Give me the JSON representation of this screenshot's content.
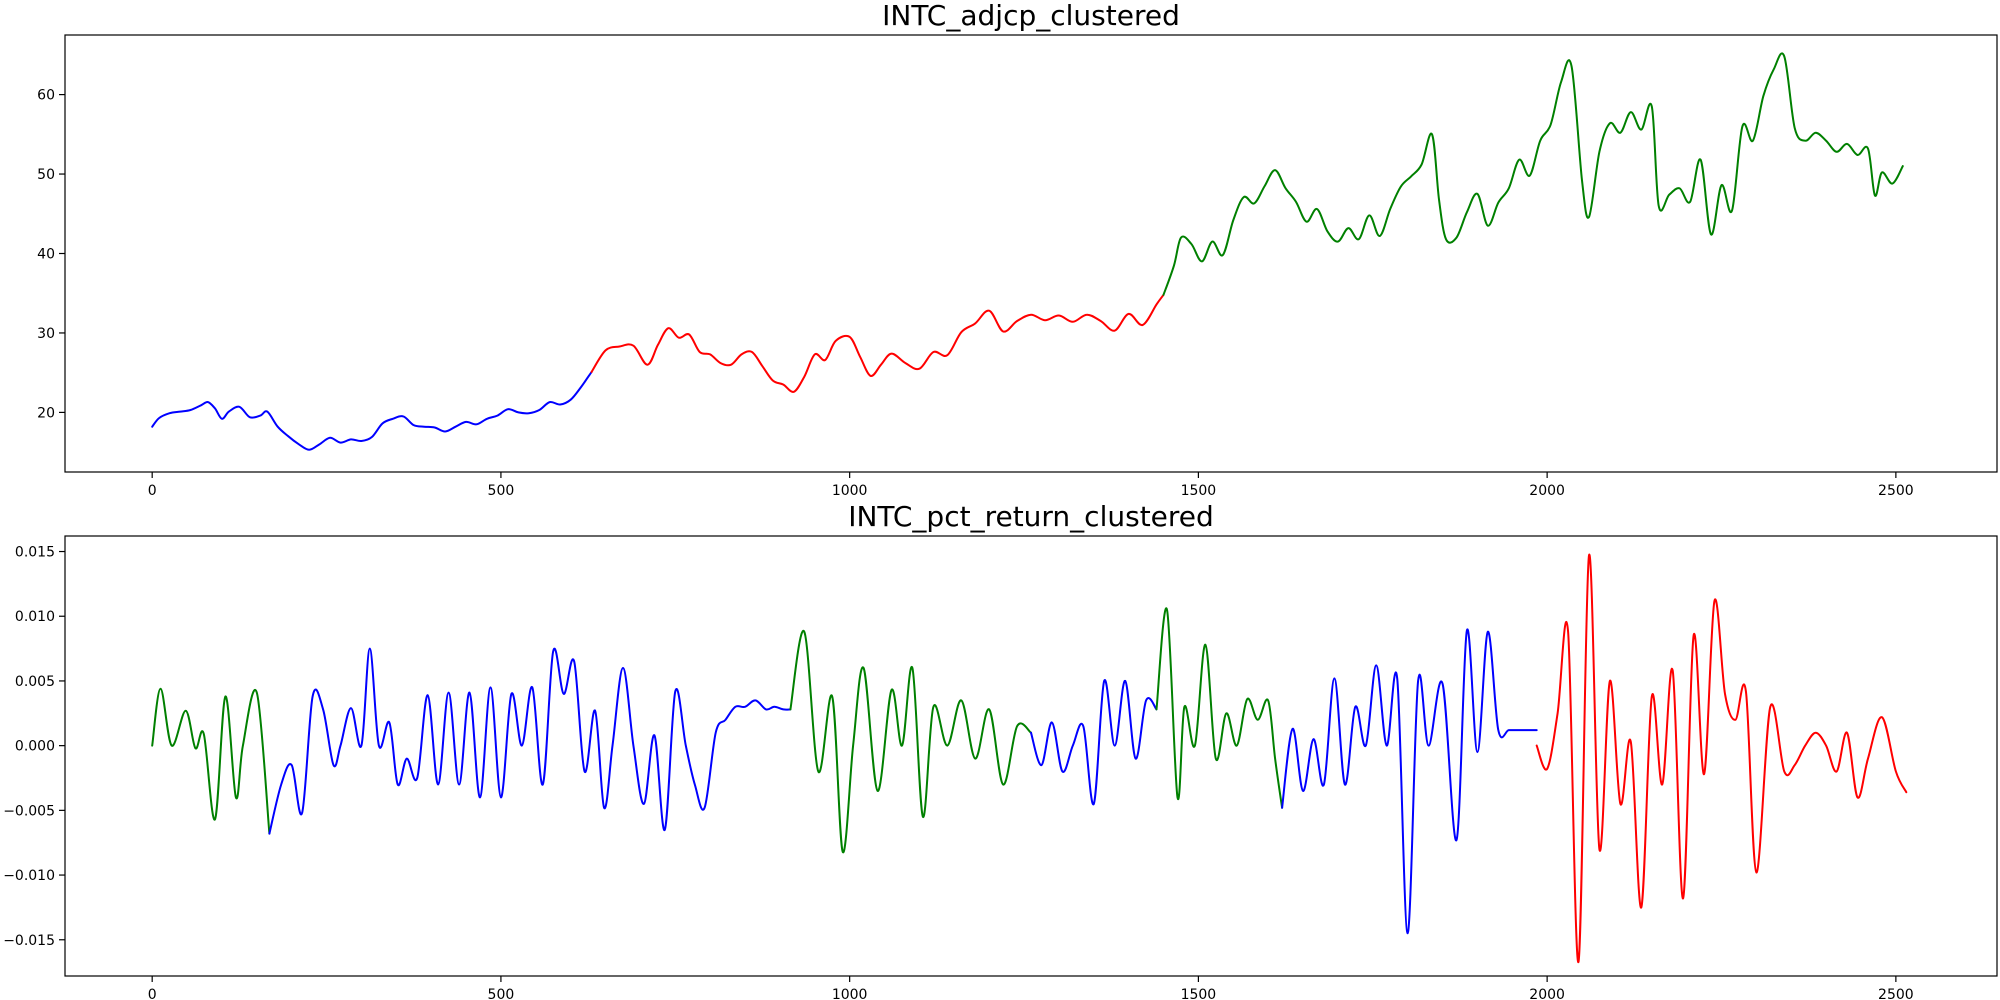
{
  "chart_data": [
    {
      "type": "line",
      "title": "INTC_adjcp_clustered",
      "xlabel": "",
      "ylabel": "",
      "xlim": [
        -125,
        2645
      ],
      "ylim": [
        12.5,
        67.5
      ],
      "xticks": [
        0,
        500,
        1000,
        1500,
        2000,
        2500
      ],
      "yticks": [
        20,
        30,
        40,
        50,
        60
      ],
      "x_tick_labels": [
        "0",
        "500",
        "1000",
        "1500",
        "2000",
        "2500"
      ],
      "y_tick_labels": [
        "20",
        "30",
        "40",
        "50",
        "60"
      ],
      "grid": false,
      "legend": "none",
      "colors": {
        "blue": "#0000ff",
        "red": "#ff0000",
        "green": "#008000"
      },
      "series": [
        {
          "color": "#0000ff",
          "x": [
            0,
            10,
            25,
            40,
            55,
            70,
            80,
            90,
            100,
            110,
            125,
            140,
            155,
            165,
            180,
            195,
            210,
            225,
            240,
            255,
            270,
            285,
            300,
            315,
            330,
            345,
            360,
            375,
            390,
            405,
            420,
            435,
            450,
            465,
            480,
            495,
            510,
            525,
            540,
            555,
            570,
            585,
            600,
            615,
            630
          ],
          "y": [
            18.2,
            19.3,
            19.9,
            20.1,
            20.3,
            20.9,
            21.3,
            20.5,
            19.2,
            20.1,
            20.7,
            19.4,
            19.6,
            20.1,
            18.2,
            17.0,
            16.0,
            15.3,
            16.0,
            16.8,
            16.2,
            16.6,
            16.4,
            16.9,
            18.6,
            19.2,
            19.5,
            18.4,
            18.2,
            18.1,
            17.6,
            18.2,
            18.8,
            18.5,
            19.2,
            19.6,
            20.4,
            20.0,
            19.9,
            20.3,
            21.3,
            21.0,
            21.6,
            23.2,
            25.1
          ]
        },
        {
          "color": "#ff0000",
          "x": [
            630,
            650,
            670,
            690,
            710,
            725,
            740,
            755,
            770,
            785,
            800,
            815,
            830,
            845,
            860,
            875,
            890,
            905,
            920,
            935,
            950,
            965,
            980,
            1000,
            1015,
            1030,
            1045,
            1060,
            1080,
            1100,
            1120,
            1140,
            1160,
            1180,
            1200,
            1220,
            1240,
            1260,
            1280,
            1300,
            1320,
            1340,
            1360,
            1380,
            1400,
            1420,
            1440,
            1450
          ],
          "y": [
            25.1,
            27.8,
            28.3,
            28.4,
            26.0,
            28.5,
            30.6,
            29.4,
            29.8,
            27.6,
            27.3,
            26.2,
            26.0,
            27.3,
            27.6,
            25.8,
            24.0,
            23.5,
            22.6,
            24.5,
            27.3,
            26.6,
            29.0,
            29.5,
            27.0,
            24.6,
            26.0,
            27.4,
            26.2,
            25.5,
            27.6,
            27.2,
            30.1,
            31.2,
            32.8,
            30.2,
            31.5,
            32.3,
            31.6,
            32.2,
            31.4,
            32.3,
            31.5,
            30.3,
            32.4,
            31.0,
            33.6,
            34.8
          ]
        },
        {
          "color": "#008000",
          "x": [
            1450,
            1465,
            1475,
            1490,
            1505,
            1520,
            1535,
            1550,
            1565,
            1580,
            1595,
            1610,
            1625,
            1640,
            1655,
            1670,
            1685,
            1700,
            1715,
            1730,
            1745,
            1760,
            1775,
            1790,
            1805,
            1820,
            1835,
            1845,
            1855,
            1870,
            1885,
            1900,
            1915,
            1930,
            1945,
            1960,
            1975,
            1990,
            2005,
            2020,
            2035,
            2050,
            2060,
            2075,
            2090,
            2105,
            2120,
            2135,
            2150,
            2160,
            2175,
            2190,
            2205,
            2220,
            2235,
            2250,
            2265,
            2280,
            2295,
            2310,
            2325,
            2340,
            2355,
            2370,
            2385,
            2400,
            2415,
            2430,
            2445,
            2460,
            2470,
            2480,
            2495,
            2510
          ],
          "y": [
            34.8,
            38.5,
            42.0,
            41.2,
            39.0,
            41.5,
            39.8,
            44.2,
            47.1,
            46.3,
            48.5,
            50.5,
            48.2,
            46.5,
            44.0,
            45.6,
            42.8,
            41.5,
            43.2,
            41.8,
            44.8,
            42.2,
            45.6,
            48.4,
            49.7,
            51.2,
            55.0,
            46.8,
            41.8,
            42.0,
            45.2,
            47.5,
            43.5,
            46.4,
            48.2,
            51.8,
            49.8,
            54.2,
            56.2,
            61.6,
            63.6,
            49.2,
            44.6,
            52.8,
            56.4,
            55.2,
            57.8,
            55.6,
            58.5,
            46.0,
            47.4,
            48.2,
            46.5,
            51.8,
            42.4,
            48.6,
            45.4,
            56.0,
            54.2,
            59.8,
            63.2,
            64.8,
            55.8,
            54.2,
            55.2,
            54.2,
            52.8,
            53.8,
            52.4,
            53.2,
            47.3,
            50.2,
            48.8,
            51.0
          ]
        }
      ]
    },
    {
      "type": "line",
      "title": "INTC_pct_return_clustered",
      "xlabel": "",
      "ylabel": "",
      "xlim": [
        -125,
        2645
      ],
      "ylim": [
        -0.0178,
        0.0162
      ],
      "xticks": [
        0,
        500,
        1000,
        1500,
        2000,
        2500
      ],
      "yticks": [
        -0.015,
        -0.01,
        -0.005,
        0.0,
        0.005,
        0.01,
        0.015
      ],
      "x_tick_labels": [
        "0",
        "500",
        "1000",
        "1500",
        "2000",
        "2500"
      ],
      "y_tick_labels": [
        "−0.015",
        "−0.010",
        "−0.005",
        "0.000",
        "0.005",
        "0.010",
        "0.015"
      ],
      "grid": false,
      "legend": "none",
      "colors": {
        "blue": "#0000ff",
        "red": "#ff0000",
        "green": "#008000"
      },
      "series": [
        {
          "color": "#008000",
          "x": [
            0,
            12,
            28,
            48,
            62,
            74,
            90,
            105,
            120,
            130,
            150,
            168
          ],
          "y": [
            0.0,
            0.0044,
            0.0,
            0.0027,
            -0.0002,
            0.0009,
            -0.0057,
            0.0038,
            -0.004,
            0.0,
            0.0041,
            -0.0068
          ]
        },
        {
          "color": "#0000ff",
          "x": [
            168,
            185,
            200,
            215,
            230,
            245,
            260,
            270,
            285,
            300,
            312,
            325,
            340,
            352,
            365,
            380,
            395,
            410,
            425,
            440,
            455,
            470,
            485,
            500,
            515,
            530,
            545,
            560,
            575,
            590,
            605,
            620,
            635,
            648,
            660,
            675,
            690,
            705,
            720,
            735,
            750,
            765,
            778,
            792,
            808,
            822,
            836,
            850,
            865,
            880,
            892,
            905,
            915
          ],
          "y": [
            -0.0068,
            -0.003,
            -0.0015,
            -0.0052,
            0.0038,
            0.0028,
            -0.0015,
            0.0,
            0.0029,
            0.0,
            0.0075,
            0.0,
            0.0018,
            -0.003,
            -0.001,
            -0.0025,
            0.0039,
            -0.003,
            0.0041,
            -0.003,
            0.0041,
            -0.004,
            0.0045,
            -0.004,
            0.004,
            0.0,
            0.0045,
            -0.003,
            0.0073,
            0.004,
            0.0065,
            -0.002,
            0.0027,
            -0.0048,
            0.0,
            0.006,
            0.0,
            -0.0045,
            0.0008,
            -0.0065,
            0.0042,
            0.0,
            -0.003,
            -0.0048,
            0.001,
            0.002,
            0.003,
            0.003,
            0.0035,
            0.0028,
            0.003,
            0.0028,
            0.0028
          ]
        },
        {
          "color": "#008000",
          "x": [
            915,
            935,
            955,
            975,
            990,
            1005,
            1020,
            1040,
            1060,
            1075,
            1090,
            1105,
            1120,
            1140,
            1160,
            1180,
            1200,
            1220,
            1240,
            1260
          ],
          "y": [
            0.0028,
            0.0088,
            -0.002,
            0.0038,
            -0.0082,
            0.0,
            0.006,
            -0.0035,
            0.0043,
            0.0,
            0.006,
            -0.0055,
            0.003,
            0.0,
            0.0035,
            -0.001,
            0.0028,
            -0.003,
            0.0015,
            0.001
          ]
        },
        {
          "color": "#0000ff",
          "x": [
            1260,
            1275,
            1290,
            1305,
            1320,
            1335,
            1350,
            1365,
            1380,
            1395,
            1410,
            1425,
            1440
          ],
          "y": [
            0.001,
            -0.0015,
            0.0018,
            -0.002,
            0.0,
            0.0015,
            -0.0045,
            0.005,
            0.0,
            0.005,
            -0.001,
            0.0035,
            0.0028
          ]
        },
        {
          "color": "#008000",
          "x": [
            1440,
            1455,
            1470,
            1480,
            1495,
            1510,
            1525,
            1540,
            1555,
            1570,
            1585,
            1600,
            1610,
            1620
          ],
          "y": [
            0.0028,
            0.0105,
            -0.004,
            0.003,
            0.0,
            0.0078,
            -0.001,
            0.0025,
            0.0,
            0.0036,
            0.002,
            0.0035,
            -0.001,
            -0.0048
          ]
        },
        {
          "color": "#0000ff",
          "x": [
            1620,
            1635,
            1650,
            1665,
            1680,
            1695,
            1710,
            1725,
            1740,
            1755,
            1770,
            1785,
            1800,
            1815,
            1830,
            1850,
            1870,
            1885,
            1900,
            1915,
            1930,
            1945,
            1960,
            1975,
            1985
          ],
          "y": [
            -0.0048,
            0.0013,
            -0.0035,
            0.0005,
            -0.003,
            0.0052,
            -0.003,
            0.003,
            0.0,
            0.0062,
            0.0,
            0.0052,
            -0.0145,
            0.005,
            0.0,
            0.0048,
            -0.0073,
            0.0089,
            -0.0005,
            0.0088,
            0.0012,
            0.0012,
            0.0012,
            0.0012,
            0.0012
          ]
        },
        {
          "color": "#ff0000",
          "x": [
            1985,
            2000,
            2015,
            2030,
            2045,
            2060,
            2075,
            2090,
            2105,
            2120,
            2135,
            2150,
            2165,
            2180,
            2195,
            2210,
            2225,
            2240,
            2255,
            2270,
            2285,
            2300,
            2320,
            2340,
            2355,
            2370,
            2385,
            2400,
            2415,
            2430,
            2445,
            2460,
            2480,
            2500,
            2515
          ],
          "y": [
            0.0,
            -0.0018,
            0.0025,
            0.0088,
            -0.0167,
            0.0147,
            -0.008,
            0.005,
            -0.0045,
            0.0003,
            -0.0125,
            0.0038,
            -0.003,
            0.0058,
            -0.0118,
            0.0085,
            -0.0022,
            0.0112,
            0.004,
            0.002,
            0.0042,
            -0.0098,
            0.003,
            -0.002,
            -0.0015,
            0.0,
            0.001,
            0.0,
            -0.002,
            0.001,
            -0.004,
            -0.001,
            0.0022,
            -0.002,
            -0.0036
          ]
        }
      ]
    }
  ]
}
